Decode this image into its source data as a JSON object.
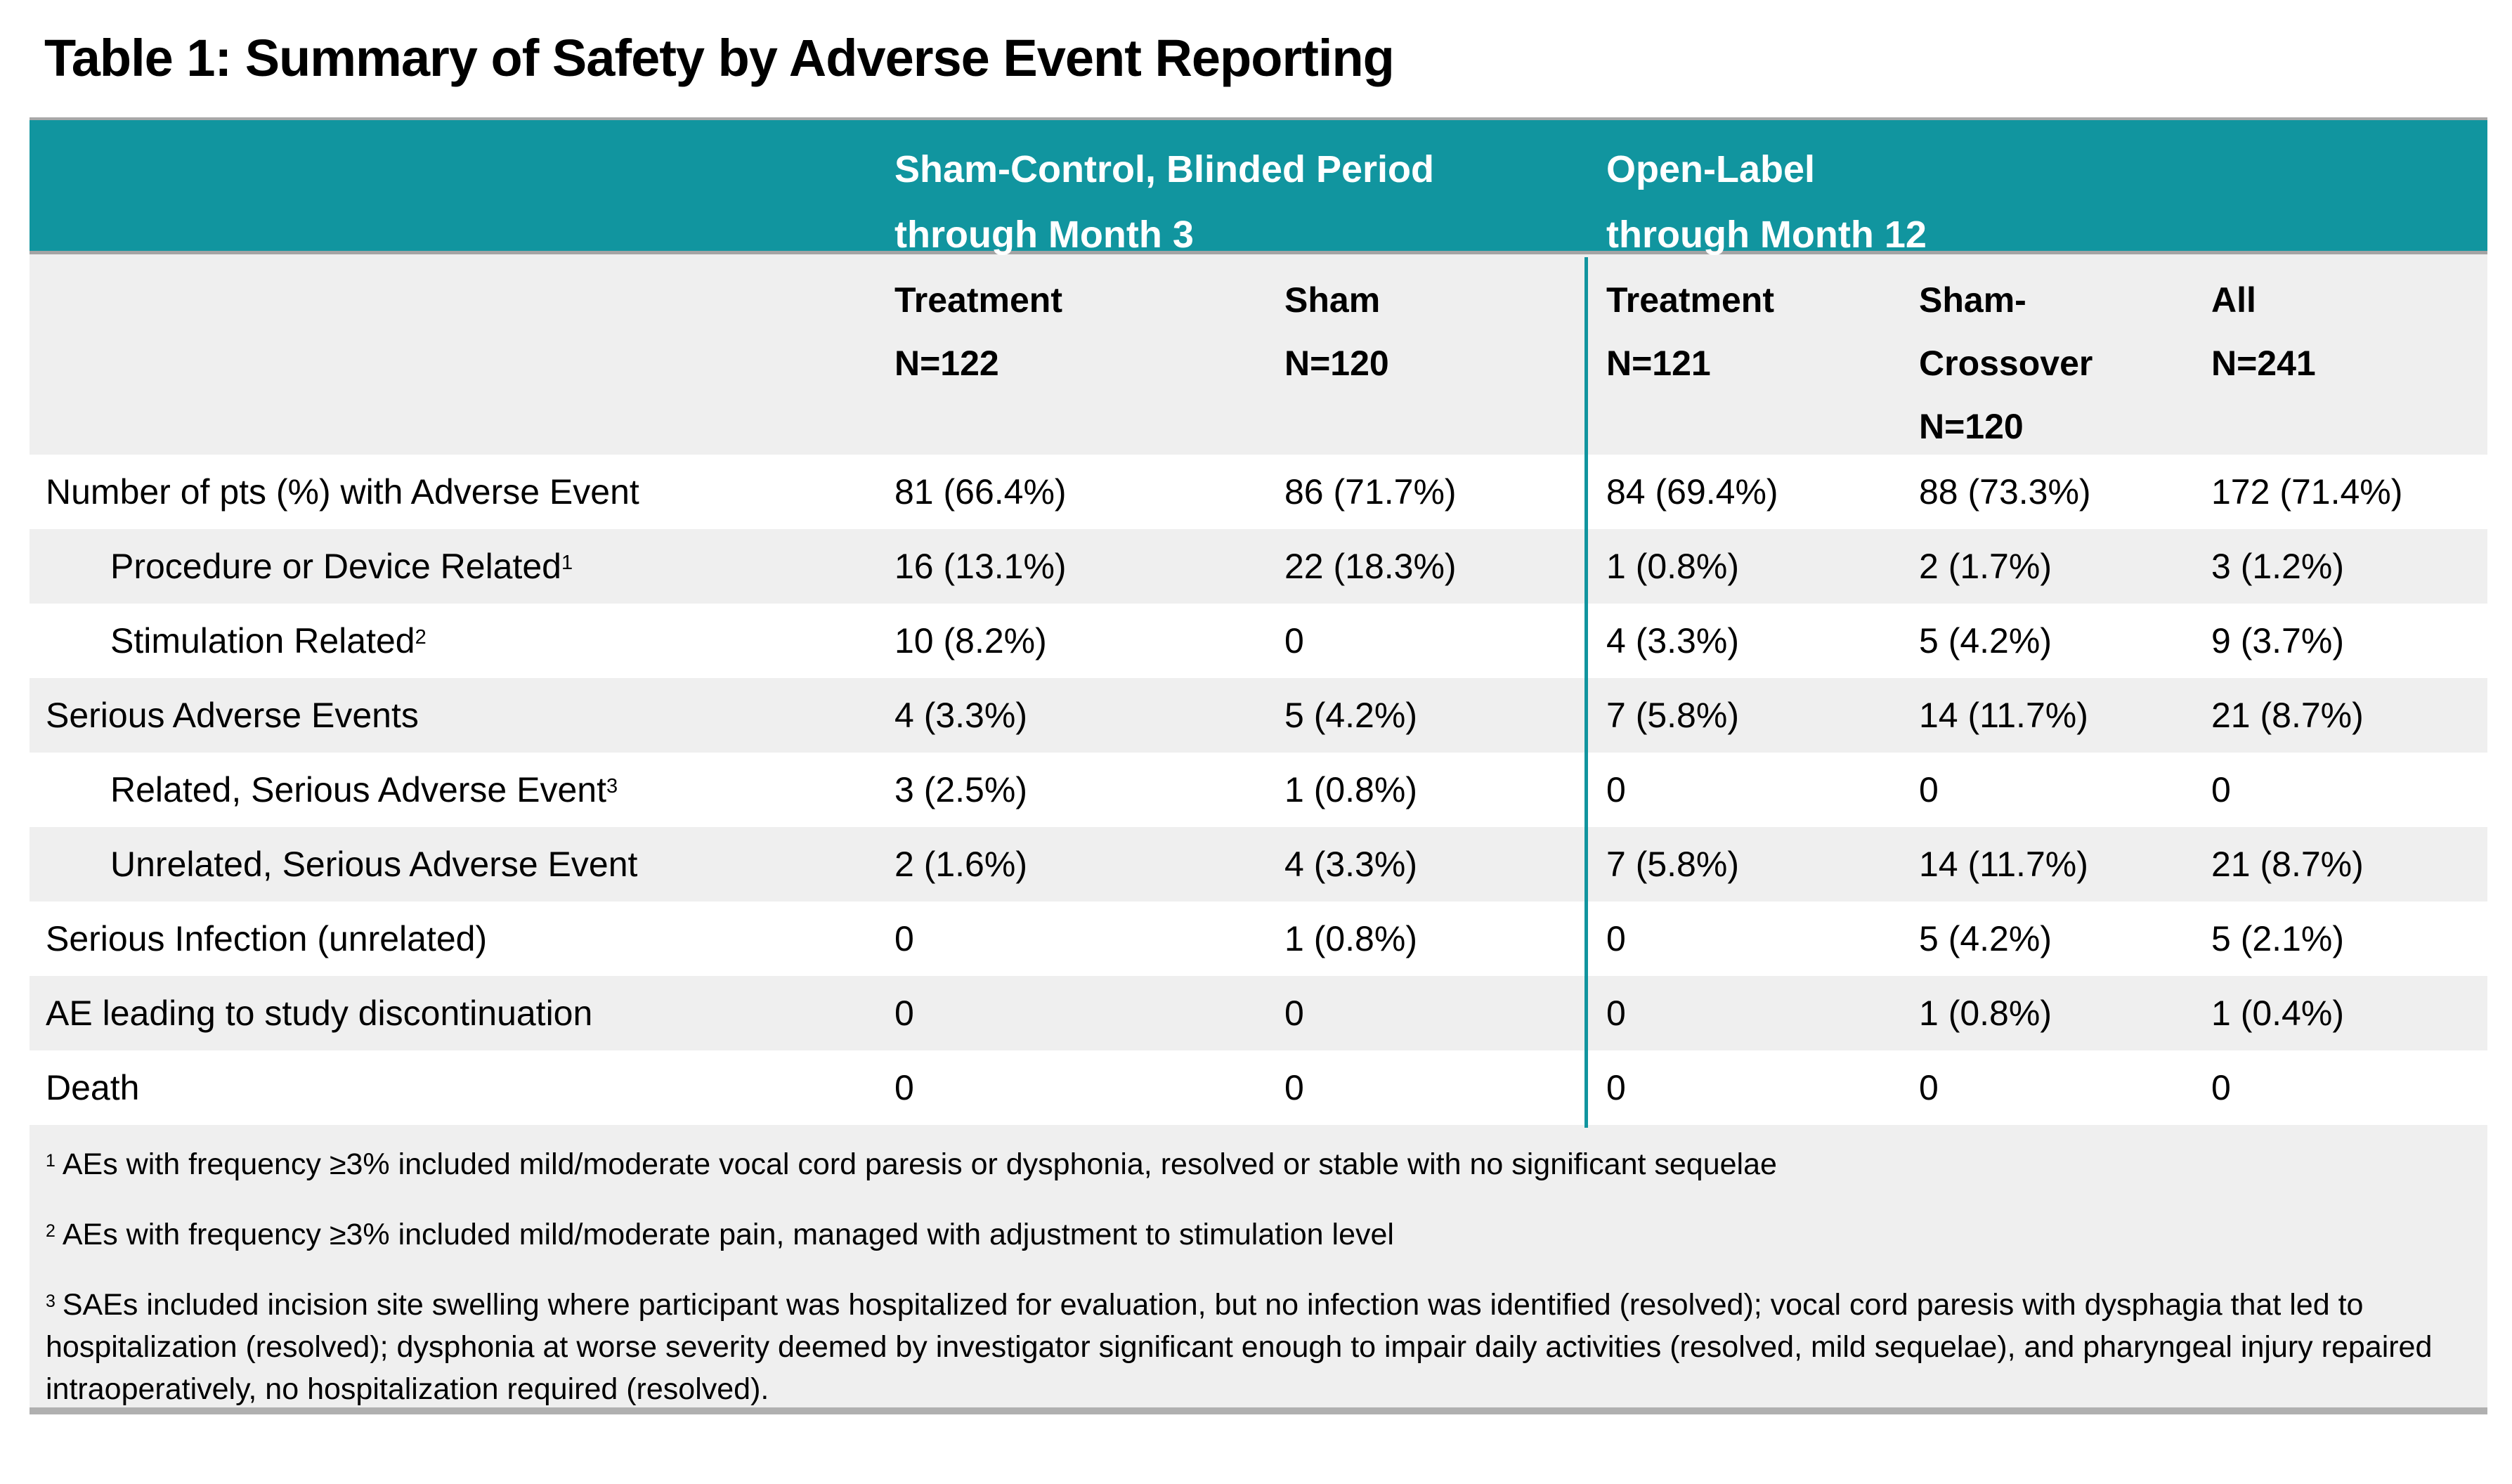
{
  "title": "Table 1: Summary of Safety by Adverse Event Reporting",
  "colors": {
    "header_teal": "#11959F",
    "header_text": "#FFFFFF",
    "row_alt_gray": "#EFEFEF",
    "border_top_gray": "#A8A8A8",
    "border_bottom_gray": "#B0B0B0",
    "body_text": "#000000"
  },
  "header": {
    "blinded": {
      "line1": "Sham-Control, Blinded Period",
      "line2": "through Month 3"
    },
    "open_label": {
      "line1": "Open-Label",
      "line2": "through Month 12"
    }
  },
  "columns": [
    {
      "lines": [
        "Treatment",
        "N=122"
      ]
    },
    {
      "lines": [
        "Sham",
        "N=120"
      ]
    },
    {
      "lines": [
        "Treatment",
        "N=121"
      ]
    },
    {
      "lines": [
        "Sham-",
        "Crossover",
        "N=120"
      ]
    },
    {
      "lines": [
        "All",
        "N=241"
      ]
    }
  ],
  "rows": [
    {
      "label": "Number of pts (%) with Adverse Event",
      "sup": "",
      "indent": false,
      "values": [
        "81 (66.4%)",
        "86 (71.7%)",
        "84 (69.4%)",
        "88 (73.3%)",
        "172 (71.4%)"
      ]
    },
    {
      "label": "Procedure or Device Related",
      "sup": "1",
      "indent": true,
      "values": [
        "16 (13.1%)",
        "22 (18.3%)",
        "1 (0.8%)",
        "2 (1.7%)",
        "3 (1.2%)"
      ]
    },
    {
      "label": "Stimulation Related",
      "sup": "2",
      "indent": true,
      "values": [
        "10 (8.2%)",
        "0",
        "4 (3.3%)",
        "5 (4.2%)",
        "9 (3.7%)"
      ]
    },
    {
      "label": "Serious Adverse Events",
      "sup": "",
      "indent": false,
      "values": [
        "4 (3.3%)",
        "5 (4.2%)",
        "7 (5.8%)",
        "14 (11.7%)",
        "21 (8.7%)"
      ]
    },
    {
      "label": "Related, Serious Adverse Event",
      "sup": "3",
      "indent": true,
      "values": [
        "3 (2.5%)",
        "1 (0.8%)",
        "0",
        "0",
        "0"
      ]
    },
    {
      "label": "Unrelated, Serious Adverse Event",
      "sup": "",
      "indent": true,
      "values": [
        "2 (1.6%)",
        "4 (3.3%)",
        "7 (5.8%)",
        "14 (11.7%)",
        "21 (8.7%)"
      ]
    },
    {
      "label": "Serious Infection (unrelated)",
      "sup": "",
      "indent": false,
      "values": [
        "0",
        "1 (0.8%)",
        "0",
        "5 (4.2%)",
        "5 (2.1%)"
      ]
    },
    {
      "label": "AE leading to study discontinuation",
      "sup": "",
      "indent": false,
      "values": [
        "0",
        "0",
        "0",
        "1 (0.8%)",
        "1 (0.4%)"
      ]
    },
    {
      "label": "Death",
      "sup": "",
      "indent": false,
      "values": [
        "0",
        "0",
        "0",
        "0",
        "0"
      ]
    }
  ],
  "footnotes": [
    {
      "sup": "1",
      "text": "AEs with frequency ≥3% included mild/moderate vocal cord paresis or dysphonia, resolved or stable with no significant sequelae"
    },
    {
      "sup": "2",
      "text": "AEs with frequency ≥3% included mild/moderate pain, managed with adjustment to stimulation level"
    },
    {
      "sup": "3",
      "text": "SAEs included incision site swelling where participant was hospitalized for evaluation, but no infection was identified (resolved); vocal cord paresis with dysphagia that led to hospitalization (resolved); dysphonia at worse severity deemed by investigator significant enough to impair daily activities (resolved, mild sequelae), and pharyngeal injury repaired intraoperatively, no hospitalization required (resolved)."
    }
  ]
}
